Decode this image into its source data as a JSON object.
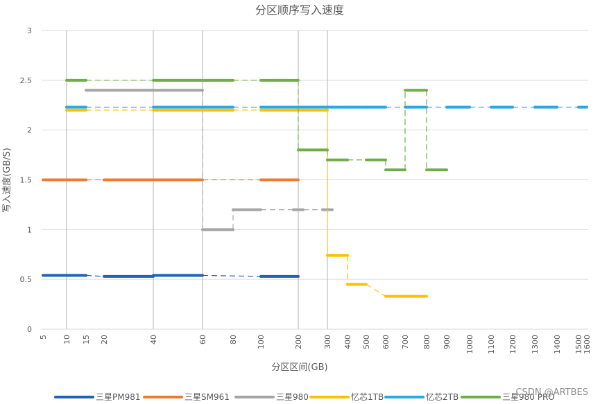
{
  "chart_data": {
    "type": "line",
    "title": "分区顺序写入速度",
    "xlabel": "分区区间(GB)",
    "ylabel": "写入速度(GB/S)",
    "ylim": [
      0,
      3
    ],
    "yticks": [
      "0",
      "0.5",
      "1",
      "1.5",
      "2",
      "2.5",
      "3"
    ],
    "xticks": [
      "5",
      "10",
      "15",
      "20",
      "40",
      "60",
      "80",
      "100",
      "200",
      "300",
      "400",
      "500",
      "600",
      "700",
      "800",
      "900",
      "1000",
      "1100",
      "1200",
      "1300",
      "1400",
      "1500",
      "1600"
    ],
    "grid": "vertical lines at 10, 40, 60, 200, 300",
    "legend_position": "bottom",
    "series": [
      {
        "name": "三星PM981",
        "color": "#1f63b6",
        "points": [
          {
            "x0": "5",
            "x1": "10",
            "y": 0.54
          },
          {
            "x0": "10",
            "x1": "15",
            "y": 0.54
          },
          {
            "x0": "20",
            "x1": "40",
            "y": 0.53
          },
          {
            "x0": "40",
            "x1": "60",
            "y": 0.54
          },
          {
            "x0": "100",
            "x1": "200",
            "y": 0.53
          }
        ]
      },
      {
        "name": "三星SM961",
        "color": "#ec7c30",
        "points": [
          {
            "x0": "5",
            "x1": "10",
            "y": 1.5
          },
          {
            "x0": "10",
            "x1": "15",
            "y": 1.5
          },
          {
            "x0": "20",
            "x1": "40",
            "y": 1.5
          },
          {
            "x0": "40",
            "x1": "60",
            "y": 1.5
          },
          {
            "x0": "100",
            "x1": "200",
            "y": 1.5
          }
        ]
      },
      {
        "name": "三星980",
        "color": "#a5a5a5",
        "points": [
          {
            "x0": "15",
            "x1": "40",
            "y": 2.4
          },
          {
            "x0": "40",
            "x1": "60",
            "y": 2.4
          },
          {
            "x0": "60",
            "x1": "80",
            "y": 1.0
          },
          {
            "x0": "80",
            "x1": "100",
            "y": 1.2
          },
          {
            "x0": "200",
            "x1": "200",
            "y": 1.2
          },
          {
            "x0": "300",
            "x1": "300",
            "y": 1.2
          }
        ]
      },
      {
        "name": "忆芯1TB",
        "color": "#ffc000",
        "points": [
          {
            "x0": "10",
            "x1": "15",
            "y": 2.2
          },
          {
            "x0": "40",
            "x1": "60",
            "y": 2.2
          },
          {
            "x0": "60",
            "x1": "80",
            "y": 2.2
          },
          {
            "x0": "100",
            "x1": "200",
            "y": 2.2
          },
          {
            "x0": "200",
            "x1": "300",
            "y": 2.2
          },
          {
            "x0": "300",
            "x1": "400",
            "y": 0.74
          },
          {
            "x0": "400",
            "x1": "500",
            "y": 0.45
          },
          {
            "x0": "600",
            "x1": "800",
            "y": 0.33
          }
        ]
      },
      {
        "name": "忆芯2TB",
        "color": "#2aa9de",
        "points": [
          {
            "x0": "10",
            "x1": "15",
            "y": 2.23
          },
          {
            "x0": "40",
            "x1": "60",
            "y": 2.23
          },
          {
            "x0": "60",
            "x1": "80",
            "y": 2.23
          },
          {
            "x0": "100",
            "x1": "200",
            "y": 2.23
          },
          {
            "x0": "200",
            "x1": "300",
            "y": 2.23
          },
          {
            "x0": "300",
            "x1": "400",
            "y": 2.23
          },
          {
            "x0": "400",
            "x1": "500",
            "y": 2.23
          },
          {
            "x0": "500",
            "x1": "600",
            "y": 2.23
          },
          {
            "x0": "700",
            "x1": "800",
            "y": 2.23
          },
          {
            "x0": "900",
            "x1": "1000",
            "y": 2.23
          },
          {
            "x0": "1100",
            "x1": "1200",
            "y": 2.23
          },
          {
            "x0": "1300",
            "x1": "1400",
            "y": 2.23
          },
          {
            "x0": "1500",
            "x1": "1600",
            "y": 2.23
          }
        ]
      },
      {
        "name": "三星980 PRO",
        "color": "#70ad47",
        "points": [
          {
            "x0": "10",
            "x1": "15",
            "y": 2.5
          },
          {
            "x0": "40",
            "x1": "60",
            "y": 2.5
          },
          {
            "x0": "60",
            "x1": "80",
            "y": 2.5
          },
          {
            "x0": "100",
            "x1": "200",
            "y": 2.5
          },
          {
            "x0": "200",
            "x1": "300",
            "y": 1.8
          },
          {
            "x0": "300",
            "x1": "400",
            "y": 1.7
          },
          {
            "x0": "500",
            "x1": "600",
            "y": 1.7
          },
          {
            "x0": "600",
            "x1": "700",
            "y": 1.6
          },
          {
            "x0": "700",
            "x1": "800",
            "y": 2.4
          },
          {
            "x0": "800",
            "x1": "900",
            "y": 1.6
          }
        ]
      }
    ]
  },
  "watermark": "CSDN @ARTBES"
}
